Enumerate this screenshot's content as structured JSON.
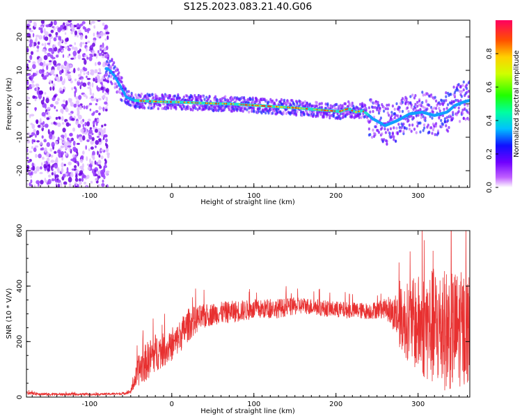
{
  "title": "S125.2023.083.21.40.G06",
  "colors": {
    "snr_line": "#e83030",
    "axis": "#000000"
  },
  "chart_data": [
    {
      "type": "heatmap",
      "name": "spectrogram",
      "xlabel": "Height of straight line (km)",
      "ylabel": "Frequency (Hz)",
      "xlim": [
        -177,
        363
      ],
      "ylim": [
        -25,
        25
      ],
      "xticks": [
        "-100",
        "0",
        "100",
        "200",
        "300"
      ],
      "xtick_values": [
        -100,
        0,
        100,
        200,
        300
      ],
      "yticks": [
        "-20",
        "-10",
        "0",
        "10",
        "20"
      ],
      "ytick_values": [
        -20,
        -10,
        0,
        10,
        20
      ],
      "colorbar": {
        "label": "Normalized spectral amplitude",
        "range": [
          0,
          1
        ],
        "ticks": [
          "0.0",
          "0.2",
          "0.4",
          "0.6",
          "0.8"
        ],
        "tick_values": [
          0.0,
          0.2,
          0.4,
          0.6,
          0.8
        ]
      },
      "ridge": {
        "x": [
          -77,
          -70,
          -62,
          -55,
          -45,
          -30,
          -10,
          10,
          30,
          50,
          70,
          90,
          110,
          130,
          150,
          170,
          190,
          205,
          215,
          225,
          233,
          245,
          260,
          275,
          290,
          305,
          320,
          335,
          345,
          355,
          363
        ],
        "y": [
          10.5,
          8.5,
          5.0,
          2.0,
          1.0,
          0.8,
          0.6,
          0.5,
          0.3,
          0.1,
          0.0,
          -0.3,
          -0.6,
          -0.9,
          -1.2,
          -1.6,
          -2.0,
          -2.3,
          -1.5,
          -2.5,
          -2.0,
          -4.5,
          -6.5,
          -5.0,
          -3.0,
          -2.5,
          -3.5,
          -2.5,
          -0.5,
          0.5,
          1.0
        ]
      },
      "noise_region_x": [
        -177,
        -77
      ]
    },
    {
      "type": "line",
      "name": "snr",
      "xlabel": "Height of straight line (km)",
      "ylabel": "SNR (10 * V/V)",
      "xlim": [
        -177,
        363
      ],
      "ylim": [
        0,
        600
      ],
      "xticks": [
        "-100",
        "0",
        "100",
        "200",
        "300"
      ],
      "xtick_values": [
        -100,
        0,
        100,
        200,
        300
      ],
      "yticks": [
        "0",
        "200",
        "400",
        "600"
      ],
      "ytick_values": [
        0,
        200,
        400,
        600
      ],
      "envelope": {
        "x": [
          -177,
          -150,
          -100,
          -60,
          -50,
          -45,
          -40,
          -30,
          -20,
          -10,
          0,
          10,
          20,
          30,
          50,
          80,
          100,
          130,
          160,
          200,
          240,
          260,
          270,
          280,
          300,
          320,
          340,
          363
        ],
        "y": [
          15,
          10,
          10,
          12,
          20,
          60,
          100,
          130,
          160,
          170,
          180,
          220,
          260,
          280,
          300,
          310,
          315,
          320,
          330,
          315,
          310,
          320,
          300,
          280,
          260,
          250,
          240,
          250
        ],
        "spread": [
          6,
          5,
          4,
          4,
          8,
          30,
          60,
          70,
          70,
          60,
          50,
          60,
          60,
          50,
          40,
          40,
          35,
          35,
          30,
          30,
          30,
          35,
          60,
          120,
          180,
          220,
          220,
          200
        ]
      }
    }
  ]
}
